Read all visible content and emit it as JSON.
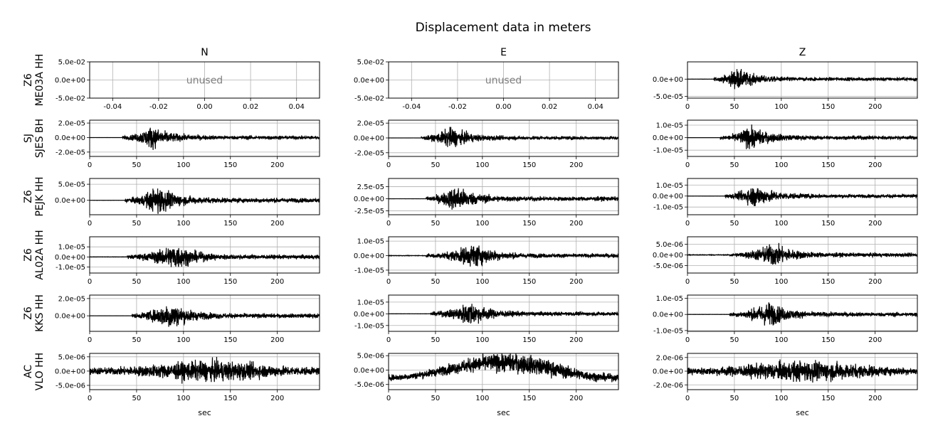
{
  "figure": {
    "title": "Displacement data in meters",
    "columns": [
      "N",
      "E",
      "Z"
    ],
    "stations": [
      {
        "network": "Z6",
        "station": "ME03A HH"
      },
      {
        "network": "SJ",
        "station": "SJES BH"
      },
      {
        "network": "Z6",
        "station": "PEJK HH"
      },
      {
        "network": "Z6",
        "station": "AL02A HH"
      },
      {
        "network": "Z6",
        "station": "KKS HH"
      },
      {
        "network": "AC",
        "station": "VLO HH"
      }
    ],
    "xlabel": "sec",
    "unused_label": "unused"
  },
  "chart_data": {
    "type": "line",
    "grid": true,
    "time_axis": {
      "xlim": [
        0,
        245
      ],
      "ticks": [
        0,
        50,
        100,
        150,
        200
      ],
      "tick_labels": [
        "0",
        "50",
        "100",
        "150",
        "200"
      ]
    },
    "unused_axis": {
      "xlim": [
        -0.05,
        0.05
      ],
      "ticks": [
        -0.04,
        -0.02,
        0.0,
        0.02,
        0.04
      ],
      "tick_labels": [
        "-0.04",
        "-0.02",
        "0.00",
        "0.02",
        "0.04"
      ],
      "ylim": [
        -0.05,
        0.05
      ],
      "yticks": [
        -0.05,
        0.0,
        0.05
      ],
      "ytick_labels": [
        "-5.0e-02",
        "0.0e+00",
        "5.0e-02"
      ]
    },
    "panels": [
      {
        "row": 0,
        "component": "N",
        "unused": true
      },
      {
        "row": 0,
        "component": "E",
        "unused": true
      },
      {
        "row": 0,
        "component": "Z",
        "unused": false,
        "ylim": [
          -5.5e-05,
          5e-05
        ],
        "yticks": [
          0,
          -5e-05
        ],
        "ytick_labels": [
          "0.0e+00",
          "-5.0e-05"
        ],
        "onset": 28,
        "peak_time": 52,
        "peak_amp": 4.8e-05,
        "noise": 0.02
      },
      {
        "row": 1,
        "component": "N",
        "unused": false,
        "ylim": [
          -2.6e-05,
          2.4e-05
        ],
        "yticks": [
          2e-05,
          0,
          -2e-05
        ],
        "ytick_labels": [
          "2.0e-05",
          "0.0e+00",
          "-2.0e-05"
        ],
        "onset": 35,
        "peak_time": 66,
        "peak_amp": 2.4e-05,
        "noise": 0.01
      },
      {
        "row": 1,
        "component": "E",
        "unused": false,
        "ylim": [
          -2.5e-05,
          2.4e-05
        ],
        "yticks": [
          2e-05,
          0,
          -2e-05
        ],
        "ytick_labels": [
          "2.0e-05",
          "0.0e+00",
          "-2.0e-05"
        ],
        "onset": 35,
        "peak_time": 66,
        "peak_amp": 2.2e-05,
        "noise": 0.01
      },
      {
        "row": 1,
        "component": "Z",
        "unused": false,
        "ylim": [
          -1.5e-05,
          1.4e-05
        ],
        "yticks": [
          1e-05,
          0,
          -1e-05
        ],
        "ytick_labels": [
          "1.0e-05",
          "0.0e+00",
          "-1.0e-05"
        ],
        "onset": 35,
        "peak_time": 67,
        "peak_amp": 1.4e-05,
        "noise": 0.01
      },
      {
        "row": 2,
        "component": "N",
        "unused": false,
        "ylim": [
          -4.5e-05,
          6.8e-05
        ],
        "yticks": [
          5e-05,
          0
        ],
        "ytick_labels": [
          "5.0e-05",
          "0.0e+00"
        ],
        "onset": 38,
        "peak_time": 73,
        "peak_amp": 6.8e-05,
        "noise": 0.01
      },
      {
        "row": 2,
        "component": "E",
        "unused": false,
        "ylim": [
          -3.3e-05,
          4.2e-05
        ],
        "yticks": [
          2.5e-05,
          0,
          -2.5e-05
        ],
        "ytick_labels": [
          "2.5e-05",
          "0.0e+00",
          "-2.5e-05"
        ],
        "onset": 40,
        "peak_time": 72,
        "peak_amp": 4.2e-05,
        "noise": 0.01
      },
      {
        "row": 2,
        "component": "Z",
        "unused": false,
        "ylim": [
          -1.7e-05,
          1.6e-05
        ],
        "yticks": [
          1e-05,
          0,
          -1e-05
        ],
        "ytick_labels": [
          "1.0e-05",
          "0.0e+00",
          "-1.0e-05"
        ],
        "onset": 40,
        "peak_time": 72,
        "peak_amp": 1.6e-05,
        "noise": 0.01
      },
      {
        "row": 3,
        "component": "N",
        "unused": false,
        "ylim": [
          -1.6e-05,
          2e-05
        ],
        "yticks": [
          1e-05,
          0,
          -1e-05
        ],
        "ytick_labels": [
          "1.0e-05",
          "0.0e+00",
          "-1.0e-05"
        ],
        "onset": 40,
        "peak_time": 92,
        "peak_amp": 2e-05,
        "noise": 0.03
      },
      {
        "row": 3,
        "component": "E",
        "unused": false,
        "ylim": [
          -1.2e-05,
          1.3e-05
        ],
        "yticks": [
          1e-05,
          0,
          -1e-05
        ],
        "ytick_labels": [
          "1.0e-05",
          "0.0e+00",
          "-1.0e-05"
        ],
        "onset": 40,
        "peak_time": 92,
        "peak_amp": 1.3e-05,
        "noise": 0.06
      },
      {
        "row": 3,
        "component": "Z",
        "unused": false,
        "ylim": [
          -8.5e-06,
          8.5e-06
        ],
        "yticks": [
          5e-06,
          0,
          -5e-06
        ],
        "ytick_labels": [
          "5.0e-06",
          "0.0e+00",
          "-5.0e-06"
        ],
        "onset": 45,
        "peak_time": 92,
        "peak_amp": 8.5e-06,
        "noise": 0.08
      },
      {
        "row": 4,
        "component": "N",
        "unused": false,
        "ylim": [
          -1.8e-05,
          2.4e-05
        ],
        "yticks": [
          2e-05,
          0
        ],
        "ytick_labels": [
          "2.0e-05",
          "0.0e+00"
        ],
        "onset": 45,
        "peak_time": 86,
        "peak_amp": 2.4e-05,
        "noise": 0.01
      },
      {
        "row": 4,
        "component": "E",
        "unused": false,
        "ylim": [
          -1.5e-05,
          1.6e-05
        ],
        "yticks": [
          1e-05,
          0,
          -1e-05
        ],
        "ytick_labels": [
          "1.0e-05",
          "0.0e+00",
          "-1.0e-05"
        ],
        "onset": 45,
        "peak_time": 87,
        "peak_amp": 1.6e-05,
        "noise": 0.02
      },
      {
        "row": 4,
        "component": "Z",
        "unused": false,
        "ylim": [
          -1.05e-05,
          1.2e-05
        ],
        "yticks": [
          1e-05,
          0,
          -1e-05
        ],
        "ytick_labels": [
          "1.0e-05",
          "0.0e+00",
          "-1.0e-05"
        ],
        "onset": 45,
        "peak_time": 87,
        "peak_amp": 1.2e-05,
        "noise": 0.02
      },
      {
        "row": 5,
        "component": "N",
        "unused": false,
        "ylim": [
          -6.5e-06,
          6.2e-06
        ],
        "yticks": [
          5e-06,
          0,
          -5e-06
        ],
        "ytick_labels": [
          "5.0e-06",
          "0.0e+00",
          "-5.0e-06"
        ],
        "onset": 0,
        "peak_time": 130,
        "peak_amp": 6.2e-06,
        "noise": 0.3
      },
      {
        "row": 5,
        "component": "E",
        "unused": false,
        "ylim": [
          -6.8e-06,
          5.8e-06
        ],
        "yticks": [
          5e-06,
          0,
          -5e-06
        ],
        "ytick_labels": [
          "5.0e-06",
          "0.0e+00",
          "-5.0e-06"
        ],
        "onset": 0,
        "peak_time": 135,
        "peak_amp": 5.8e-06,
        "noise": 0.25
      },
      {
        "row": 5,
        "component": "Z",
        "unused": false,
        "ylim": [
          -2.7e-06,
          2.6e-06
        ],
        "yticks": [
          2e-06,
          0,
          -2e-06
        ],
        "ytick_labels": [
          "2.0e-06",
          "0.0e+00",
          "-2.0e-06"
        ],
        "onset": 0,
        "peak_time": 125,
        "peak_amp": 2.6e-06,
        "noise": 0.3
      }
    ]
  }
}
